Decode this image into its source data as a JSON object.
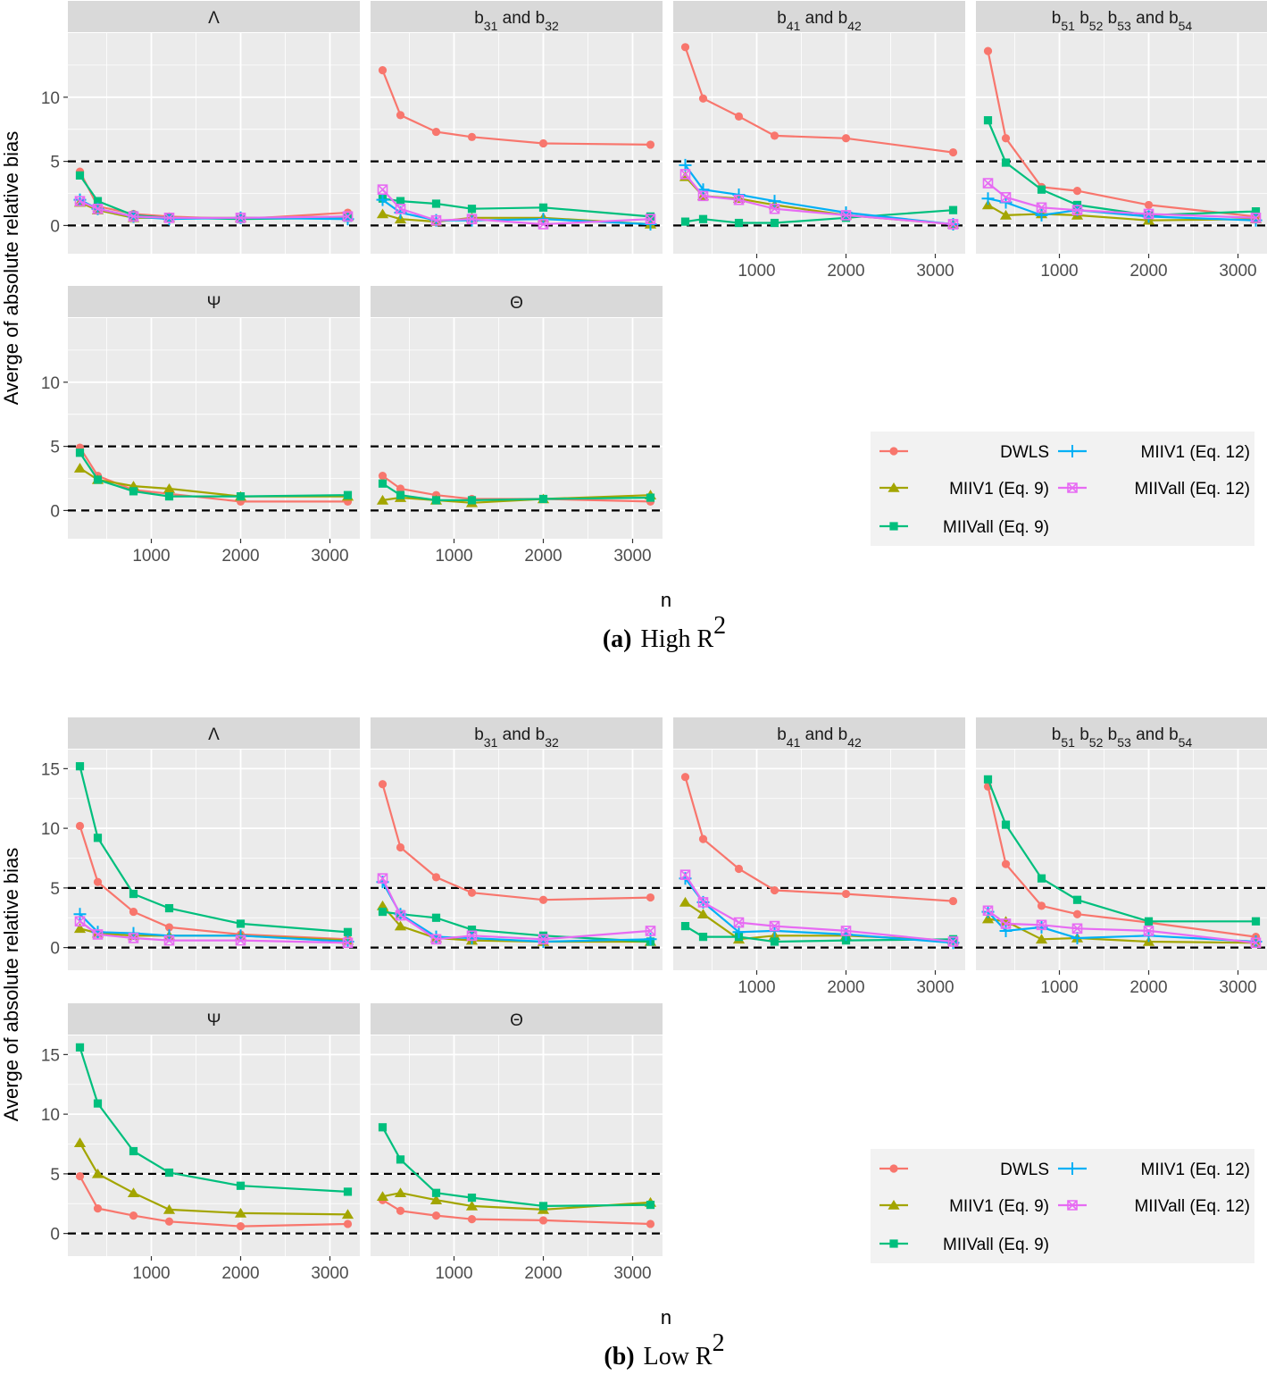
{
  "colors": {
    "DWLS": "#F8766D",
    "MIIV1 (Eq. 9)": "#A3A500",
    "MIIVall (Eq. 9)": "#00BF7D",
    "MIIV1 (Eq. 12)": "#00B0F6",
    "MIIVall (Eq. 12)": "#E76BF3"
  },
  "figures": [
    {
      "caption": {
        "label": "(a)",
        "text": "High R",
        "sup": "2"
      },
      "ylabel": "Averge of absolute relative bias",
      "xlabel": "n",
      "legend": [
        "DWLS",
        "MIIV1 (Eq. 9)",
        "MIIVall (Eq. 9)",
        "MIIV1 (Eq. 12)",
        "MIIVall (Eq. 12)"
      ],
      "yticks": [
        "0",
        "5",
        "10"
      ],
      "xticks": [
        "1000",
        "2000",
        "3000"
      ],
      "panels": [
        {
          "strip": [
            [
              "Λ",
              ""
            ]
          ]
        },
        {
          "strip": [
            [
              "b",
              ""
            ],
            [
              "31",
              "sub"
            ],
            [
              " and b",
              ""
            ],
            [
              "32",
              "sub"
            ]
          ]
        },
        {
          "strip": [
            [
              "b",
              ""
            ],
            [
              "41",
              "sub"
            ],
            [
              " and b",
              ""
            ],
            [
              "42",
              "sub"
            ]
          ]
        },
        {
          "strip": [
            [
              "b",
              ""
            ],
            [
              "51",
              "sub"
            ],
            [
              "  b",
              ""
            ],
            [
              "52",
              "sub"
            ],
            [
              "  b",
              ""
            ],
            [
              "53",
              "sub"
            ],
            [
              " and b",
              ""
            ],
            [
              "54",
              "sub"
            ]
          ]
        },
        {
          "strip": [
            [
              "Ψ",
              ""
            ]
          ]
        },
        {
          "strip": [
            [
              "Θ",
              ""
            ]
          ]
        }
      ]
    },
    {
      "caption": {
        "label": "(b)",
        "text": "Low R",
        "sup": "2"
      },
      "ylabel": "Averge of absolute relative bias",
      "xlabel": "n",
      "legend": [
        "DWLS",
        "MIIV1 (Eq. 9)",
        "MIIVall (Eq. 9)",
        "MIIV1 (Eq. 12)",
        "MIIVall (Eq. 12)"
      ],
      "yticks": [
        "0",
        "5",
        "10",
        "15"
      ],
      "xticks": [
        "1000",
        "2000",
        "3000"
      ],
      "panels": [
        {
          "strip": [
            [
              "Λ",
              ""
            ]
          ]
        },
        {
          "strip": [
            [
              "b",
              ""
            ],
            [
              "31",
              "sub"
            ],
            [
              " and b",
              ""
            ],
            [
              "32",
              "sub"
            ]
          ]
        },
        {
          "strip": [
            [
              "b",
              ""
            ],
            [
              "41",
              "sub"
            ],
            [
              " and b",
              ""
            ],
            [
              "42",
              "sub"
            ]
          ]
        },
        {
          "strip": [
            [
              "b",
              ""
            ],
            [
              "51",
              "sub"
            ],
            [
              "  b",
              ""
            ],
            [
              "52",
              "sub"
            ],
            [
              "  b",
              ""
            ],
            [
              "53",
              "sub"
            ],
            [
              " and b",
              ""
            ],
            [
              "54",
              "sub"
            ]
          ]
        },
        {
          "strip": [
            [
              "Ψ",
              ""
            ]
          ]
        },
        {
          "strip": [
            [
              "Θ",
              ""
            ]
          ]
        }
      ]
    }
  ],
  "chart_data": [
    {
      "type": "line",
      "title": "(a) High R2",
      "xlabel": "n",
      "ylabel": "Averge of absolute relative bias",
      "x": [
        200,
        400,
        800,
        1200,
        2000,
        3200
      ],
      "ylim": [
        -2.2,
        15
      ],
      "reference_lines": [
        0,
        5
      ],
      "legend_position": "right-middle",
      "facets": [
        {
          "label": "Λ",
          "series": [
            {
              "name": "DWLS",
              "values": [
                4.2,
                1.5,
                0.9,
                0.7,
                0.5,
                1.0
              ]
            },
            {
              "name": "MIIV1 (Eq. 9)",
              "values": [
                1.8,
                1.2,
                0.6,
                0.6,
                0.6,
                0.7
              ]
            },
            {
              "name": "MIIVall (Eq. 9)",
              "values": [
                3.9,
                1.9,
                0.8,
                0.6,
                0.5,
                0.6
              ]
            },
            {
              "name": "MIIV1 (Eq. 12)",
              "values": [
                2.0,
                1.3,
                0.7,
                0.5,
                0.6,
                0.5
              ]
            },
            {
              "name": "MIIVall (Eq. 12)",
              "values": [
                1.9,
                1.3,
                0.7,
                0.6,
                0.6,
                0.7
              ]
            }
          ]
        },
        {
          "label": "b31 and b32",
          "series": [
            {
              "name": "DWLS",
              "values": [
                12.1,
                8.6,
                7.3,
                6.9,
                6.4,
                6.3
              ]
            },
            {
              "name": "MIIV1 (Eq. 9)",
              "values": [
                0.9,
                0.5,
                0.3,
                0.6,
                0.6,
                0.1
              ]
            },
            {
              "name": "MIIVall (Eq. 9)",
              "values": [
                2.1,
                1.9,
                1.7,
                1.3,
                1.4,
                0.7
              ]
            },
            {
              "name": "MIIV1 (Eq. 12)",
              "values": [
                2.0,
                1.0,
                0.4,
                0.4,
                0.5,
                0.1
              ]
            },
            {
              "name": "MIIVall (Eq. 12)",
              "values": [
                2.8,
                1.3,
                0.4,
                0.5,
                0.1,
                0.5
              ]
            }
          ]
        },
        {
          "label": "b41 and b42",
          "series": [
            {
              "name": "DWLS",
              "values": [
                13.9,
                9.9,
                8.5,
                7.0,
                6.8,
                5.7
              ]
            },
            {
              "name": "MIIV1 (Eq. 9)",
              "values": [
                3.8,
                2.3,
                2.1,
                1.6,
                0.8,
                0.1
              ]
            },
            {
              "name": "MIIVall (Eq. 9)",
              "values": [
                0.3,
                0.5,
                0.2,
                0.2,
                0.6,
                1.2
              ]
            },
            {
              "name": "MIIV1 (Eq. 12)",
              "values": [
                4.7,
                2.8,
                2.4,
                1.9,
                1.0,
                0.1
              ]
            },
            {
              "name": "MIIVall (Eq. 12)",
              "values": [
                4.0,
                2.3,
                2.0,
                1.3,
                0.8,
                0.1
              ]
            }
          ]
        },
        {
          "label": "b51 b52 b53 and b54",
          "series": [
            {
              "name": "DWLS",
              "values": [
                13.6,
                6.8,
                3.0,
                2.7,
                1.6,
                0.7
              ]
            },
            {
              "name": "MIIV1 (Eq. 9)",
              "values": [
                1.6,
                0.8,
                0.9,
                0.8,
                0.4,
                0.5
              ]
            },
            {
              "name": "MIIVall (Eq. 9)",
              "values": [
                8.2,
                4.9,
                2.8,
                1.6,
                0.8,
                1.1
              ]
            },
            {
              "name": "MIIV1 (Eq. 12)",
              "values": [
                2.1,
                1.8,
                0.8,
                1.2,
                0.7,
                0.4
              ]
            },
            {
              "name": "MIIVall (Eq. 12)",
              "values": [
                3.3,
                2.2,
                1.4,
                1.2,
                0.9,
                0.6
              ]
            }
          ]
        },
        {
          "label": "Ψ",
          "series": [
            {
              "name": "DWLS",
              "values": [
                4.9,
                2.7,
                1.6,
                1.3,
                0.7,
                0.7
              ]
            },
            {
              "name": "MIIV1 (Eq. 9)",
              "values": [
                3.3,
                2.4,
                1.9,
                1.7,
                1.1,
                1.1
              ]
            },
            {
              "name": "MIIVall (Eq. 9)",
              "values": [
                4.5,
                2.4,
                1.5,
                1.1,
                1.1,
                1.2
              ]
            }
          ]
        },
        {
          "label": "Θ",
          "series": [
            {
              "name": "DWLS",
              "values": [
                2.7,
                1.7,
                1.2,
                0.9,
                0.9,
                0.7
              ]
            },
            {
              "name": "MIIV1 (Eq. 9)",
              "values": [
                0.8,
                1.0,
                0.8,
                0.6,
                0.9,
                1.2
              ]
            },
            {
              "name": "MIIVall (Eq. 9)",
              "values": [
                2.1,
                1.2,
                0.8,
                0.8,
                0.9,
                1.0
              ]
            }
          ]
        }
      ]
    },
    {
      "type": "line",
      "title": "(b) Low R2",
      "xlabel": "n",
      "ylabel": "Averge of absolute relative bias",
      "x": [
        200,
        400,
        800,
        1200,
        2000,
        3200
      ],
      "ylim": [
        -1.9,
        16.6
      ],
      "reference_lines": [
        0,
        5
      ],
      "legend_position": "right-middle",
      "facets": [
        {
          "label": "Λ",
          "series": [
            {
              "name": "DWLS",
              "values": [
                10.2,
                5.5,
                3.0,
                1.7,
                1.1,
                0.7
              ]
            },
            {
              "name": "MIIV1 (Eq. 9)",
              "values": [
                1.6,
                1.2,
                1.0,
                1.0,
                1.0,
                0.6
              ]
            },
            {
              "name": "MIIVall (Eq. 9)",
              "values": [
                15.2,
                9.2,
                4.5,
                3.3,
                2.0,
                1.3
              ]
            },
            {
              "name": "MIIV1 (Eq. 12)",
              "values": [
                2.8,
                1.3,
                1.2,
                1.0,
                1.0,
                0.5
              ]
            },
            {
              "name": "MIIVall (Eq. 12)",
              "values": [
                2.2,
                1.1,
                0.8,
                0.6,
                0.6,
                0.4
              ]
            }
          ]
        },
        {
          "label": "b31 and b32",
          "series": [
            {
              "name": "DWLS",
              "values": [
                13.7,
                8.4,
                5.9,
                4.6,
                4.0,
                4.2
              ]
            },
            {
              "name": "MIIV1 (Eq. 9)",
              "values": [
                3.5,
                1.8,
                0.8,
                0.6,
                0.5,
                0.5
              ]
            },
            {
              "name": "MIIVall (Eq. 9)",
              "values": [
                3.0,
                2.8,
                2.5,
                1.5,
                1.0,
                0.5
              ]
            },
            {
              "name": "MIIV1 (Eq. 12)",
              "values": [
                5.5,
                2.8,
                0.9,
                0.8,
                0.5,
                0.7
              ]
            },
            {
              "name": "MIIVall (Eq. 12)",
              "values": [
                5.8,
                2.7,
                0.7,
                1.0,
                0.7,
                1.4
              ]
            }
          ]
        },
        {
          "label": "b41 and b42",
          "series": [
            {
              "name": "DWLS",
              "values": [
                14.3,
                9.1,
                6.6,
                4.8,
                4.5,
                3.9
              ]
            },
            {
              "name": "MIIV1 (Eq. 9)",
              "values": [
                3.8,
                2.8,
                0.7,
                1.0,
                1.0,
                0.6
              ]
            },
            {
              "name": "MIIVall (Eq. 9)",
              "values": [
                1.8,
                0.9,
                0.9,
                0.5,
                0.6,
                0.7
              ]
            },
            {
              "name": "MIIV1 (Eq. 12)",
              "values": [
                5.8,
                3.8,
                1.3,
                1.4,
                1.1,
                0.4
              ]
            },
            {
              "name": "MIIVall (Eq. 12)",
              "values": [
                6.1,
                3.8,
                2.1,
                1.8,
                1.4,
                0.5
              ]
            }
          ]
        },
        {
          "label": "b51 b52 b53 and b54",
          "series": [
            {
              "name": "DWLS",
              "values": [
                13.5,
                7.0,
                3.5,
                2.8,
                2.1,
                0.9
              ]
            },
            {
              "name": "MIIV1 (Eq. 9)",
              "values": [
                2.4,
                2.2,
                0.7,
                0.8,
                0.5,
                0.4
              ]
            },
            {
              "name": "MIIVall (Eq. 9)",
              "values": [
                14.1,
                10.3,
                5.8,
                4.0,
                2.2,
                2.2
              ]
            },
            {
              "name": "MIIV1 (Eq. 12)",
              "values": [
                3.0,
                1.4,
                1.7,
                0.8,
                1.0,
                0.5
              ]
            },
            {
              "name": "MIIVall (Eq. 12)",
              "values": [
                3.1,
                2.0,
                1.9,
                1.6,
                1.4,
                0.4
              ]
            }
          ]
        },
        {
          "label": "Ψ",
          "series": [
            {
              "name": "DWLS",
              "values": [
                4.8,
                2.1,
                1.5,
                1.0,
                0.6,
                0.8
              ]
            },
            {
              "name": "MIIV1 (Eq. 9)",
              "values": [
                7.6,
                5.0,
                3.4,
                2.0,
                1.7,
                1.6
              ]
            },
            {
              "name": "MIIVall (Eq. 9)",
              "values": [
                15.6,
                10.9,
                6.9,
                5.1,
                4.0,
                3.5
              ]
            }
          ]
        },
        {
          "label": "Θ",
          "series": [
            {
              "name": "DWLS",
              "values": [
                2.8,
                1.9,
                1.5,
                1.2,
                1.1,
                0.8
              ]
            },
            {
              "name": "MIIV1 (Eq. 9)",
              "values": [
                3.1,
                3.4,
                2.8,
                2.3,
                2.0,
                2.6
              ]
            },
            {
              "name": "MIIVall (Eq. 9)",
              "values": [
                8.9,
                6.2,
                3.4,
                3.0,
                2.3,
                2.4
              ]
            }
          ]
        }
      ]
    }
  ]
}
